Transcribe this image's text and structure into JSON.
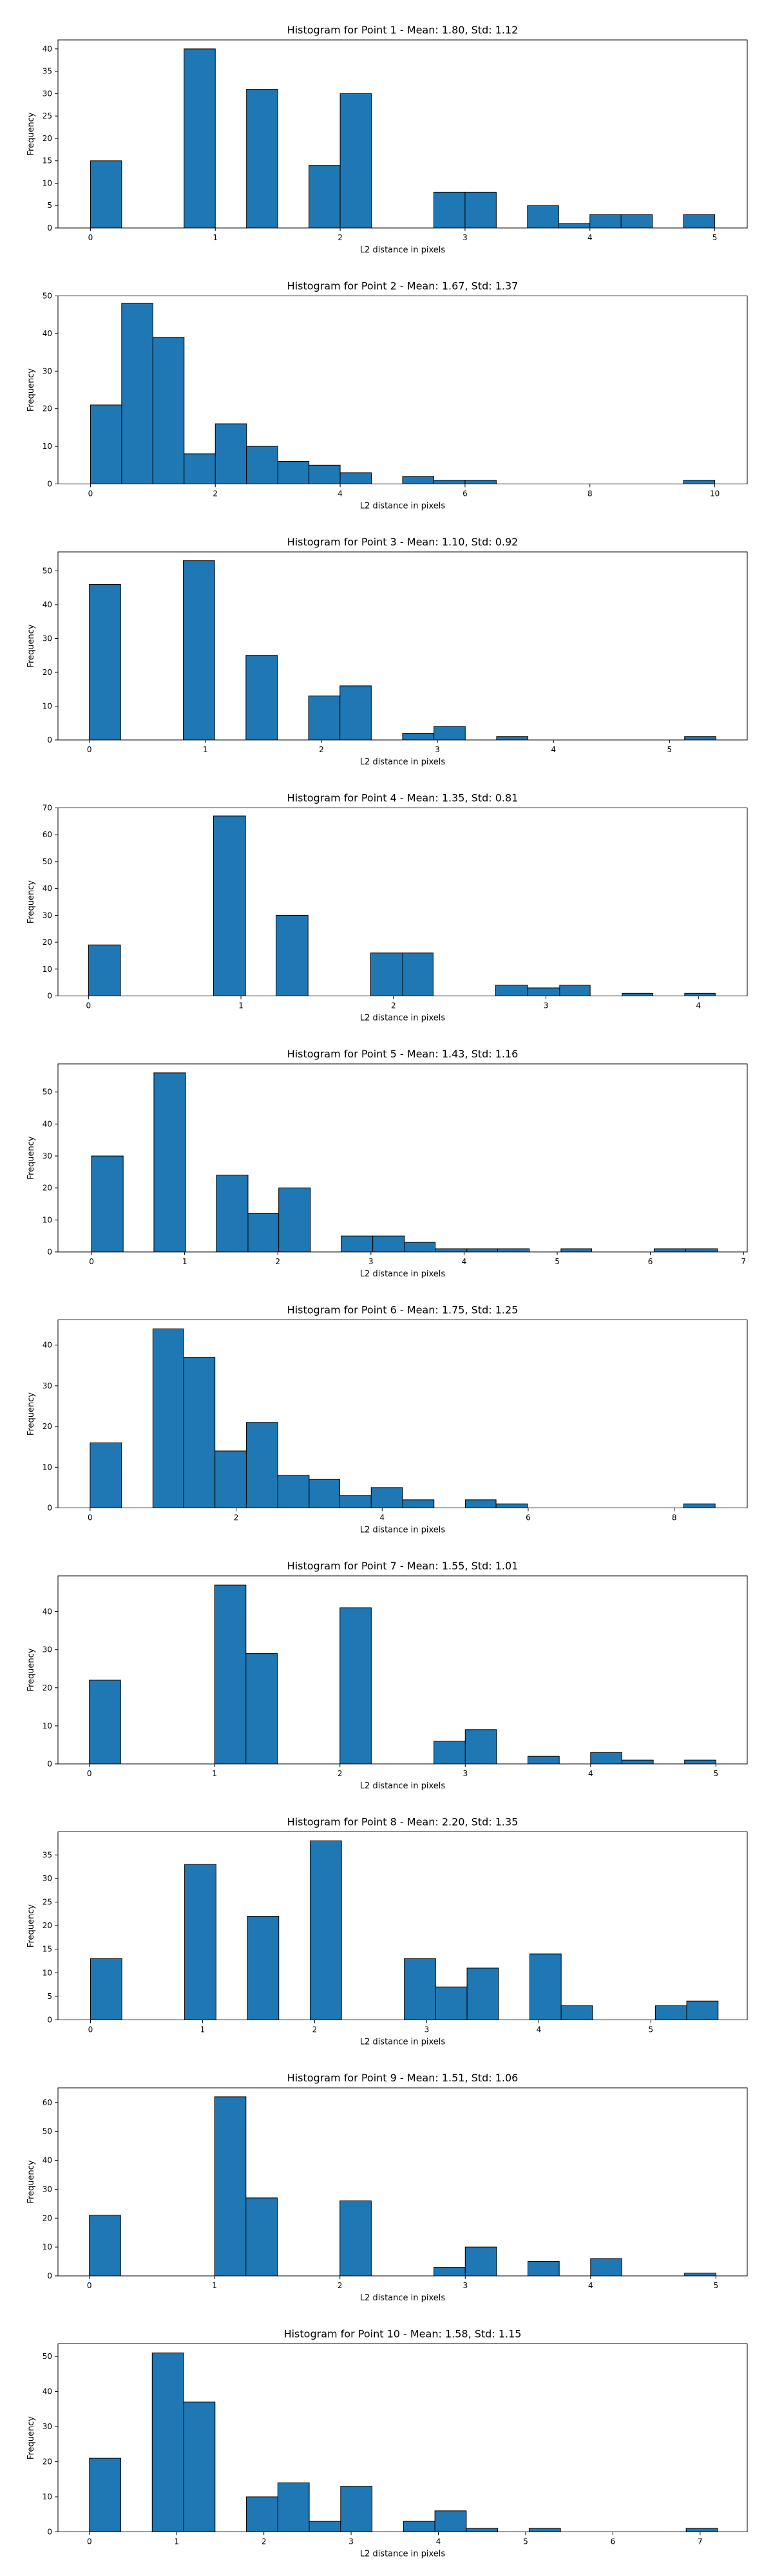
{
  "colors": {
    "bar_fill": "#1f77b4",
    "bar_edge": "#000000",
    "axes": "#000000",
    "background": "#ffffff"
  },
  "chart_data": [
    {
      "type": "bar",
      "title": "Histogram for Point 1 - Mean: 1.80, Std: 1.12",
      "xlabel": "L2 distance in pixels",
      "ylabel": "Frequency",
      "xlim": [
        -0.26,
        5.26
      ],
      "ylim": [
        0,
        42
      ],
      "xticks": [
        "0",
        "1",
        "2",
        "3",
        "4",
        "5"
      ],
      "yticks": [
        "0",
        "5",
        "10",
        "15",
        "20",
        "25",
        "30",
        "35",
        "40"
      ],
      "bins": [
        {
          "x0": 0.0,
          "x1": 0.25,
          "count": 15
        },
        {
          "x0": 0.75,
          "x1": 1.0,
          "count": 40
        },
        {
          "x0": 1.25,
          "x1": 1.5,
          "count": 31
        },
        {
          "x0": 1.75,
          "x1": 2.0,
          "count": 14
        },
        {
          "x0": 2.0,
          "x1": 2.25,
          "count": 30
        },
        {
          "x0": 2.75,
          "x1": 3.0,
          "count": 8
        },
        {
          "x0": 3.0,
          "x1": 3.25,
          "count": 8
        },
        {
          "x0": 3.5,
          "x1": 3.75,
          "count": 5
        },
        {
          "x0": 3.75,
          "x1": 4.0,
          "count": 1
        },
        {
          "x0": 4.0,
          "x1": 4.25,
          "count": 3
        },
        {
          "x0": 4.25,
          "x1": 4.5,
          "count": 3
        },
        {
          "x0": 4.75,
          "x1": 5.0,
          "count": 3
        }
      ]
    },
    {
      "type": "bar",
      "title": "Histogram for Point 2 - Mean: 1.67, Std: 1.37",
      "xlabel": "L2 distance in pixels",
      "ylabel": "Frequency",
      "xlim": [
        -0.52,
        10.52
      ],
      "ylim": [
        0,
        50
      ],
      "xticks": [
        "0",
        "2",
        "4",
        "6",
        "8",
        "10"
      ],
      "yticks": [
        "0",
        "10",
        "20",
        "30",
        "40",
        "50"
      ],
      "bins": [
        {
          "x0": 0.0,
          "x1": 0.5,
          "count": 21
        },
        {
          "x0": 0.5,
          "x1": 1.0,
          "count": 48
        },
        {
          "x0": 1.0,
          "x1": 1.5,
          "count": 39
        },
        {
          "x0": 1.5,
          "x1": 2.0,
          "count": 8
        },
        {
          "x0": 2.0,
          "x1": 2.5,
          "count": 16
        },
        {
          "x0": 2.5,
          "x1": 3.0,
          "count": 10
        },
        {
          "x0": 3.0,
          "x1": 3.5,
          "count": 6
        },
        {
          "x0": 3.5,
          "x1": 4.0,
          "count": 5
        },
        {
          "x0": 4.0,
          "x1": 4.5,
          "count": 3
        },
        {
          "x0": 5.0,
          "x1": 5.5,
          "count": 2
        },
        {
          "x0": 5.5,
          "x1": 6.0,
          "count": 1
        },
        {
          "x0": 6.0,
          "x1": 6.5,
          "count": 1
        },
        {
          "x0": 9.5,
          "x1": 10.0,
          "count": 1
        }
      ]
    },
    {
      "type": "bar",
      "title": "Histogram for Point 3 - Mean: 1.10, Std: 0.92",
      "xlabel": "L2 distance in pixels",
      "ylabel": "Frequency",
      "xlim": [
        -0.27,
        5.67
      ],
      "ylim": [
        0,
        55.6
      ],
      "xticks": [
        "0",
        "1",
        "2",
        "3",
        "4",
        "5"
      ],
      "yticks": [
        "0",
        "10",
        "20",
        "30",
        "40",
        "50"
      ],
      "bins": [
        {
          "x0": 0.0,
          "x1": 0.27,
          "count": 46
        },
        {
          "x0": 0.81,
          "x1": 1.08,
          "count": 53
        },
        {
          "x0": 1.35,
          "x1": 1.62,
          "count": 25
        },
        {
          "x0": 1.89,
          "x1": 2.16,
          "count": 13
        },
        {
          "x0": 2.16,
          "x1": 2.43,
          "count": 16
        },
        {
          "x0": 2.7,
          "x1": 2.97,
          "count": 2
        },
        {
          "x0": 2.97,
          "x1": 3.24,
          "count": 4
        },
        {
          "x0": 3.51,
          "x1": 3.78,
          "count": 1
        },
        {
          "x0": 5.13,
          "x1": 5.4,
          "count": 1
        }
      ]
    },
    {
      "type": "bar",
      "title": "Histogram for Point 4 - Mean: 1.35, Std: 0.81",
      "xlabel": "L2 distance in pixels",
      "ylabel": "Frequency",
      "xlim": [
        -0.2,
        4.32
      ],
      "ylim": [
        0,
        70
      ],
      "xticks": [
        "0",
        "1",
        "2",
        "3",
        "4"
      ],
      "yticks": [
        "0",
        "10",
        "20",
        "30",
        "40",
        "50",
        "60",
        "70"
      ],
      "bins": [
        {
          "x0": 0.0,
          "x1": 0.21,
          "count": 19
        },
        {
          "x0": 0.82,
          "x1": 1.03,
          "count": 67
        },
        {
          "x0": 1.23,
          "x1": 1.44,
          "count": 30
        },
        {
          "x0": 1.85,
          "x1": 2.06,
          "count": 16
        },
        {
          "x0": 2.06,
          "x1": 2.26,
          "count": 16
        },
        {
          "x0": 2.67,
          "x1": 2.88,
          "count": 4
        },
        {
          "x0": 2.88,
          "x1": 3.09,
          "count": 3
        },
        {
          "x0": 3.09,
          "x1": 3.29,
          "count": 4
        },
        {
          "x0": 3.5,
          "x1": 3.7,
          "count": 1
        },
        {
          "x0": 3.91,
          "x1": 4.11,
          "count": 1
        }
      ]
    },
    {
      "type": "bar",
      "title": "Histogram for Point 5 - Mean: 1.43, Std: 1.16",
      "xlabel": "L2 distance in pixels",
      "ylabel": "Frequency",
      "xlim": [
        -0.36,
        7.04
      ],
      "ylim": [
        0,
        58.8
      ],
      "xticks": [
        "0",
        "1",
        "2",
        "3",
        "4",
        "5",
        "6",
        "7"
      ],
      "yticks": [
        "0",
        "10",
        "20",
        "30",
        "40",
        "50"
      ],
      "bins": [
        {
          "x0": 0.0,
          "x1": 0.34,
          "count": 30
        },
        {
          "x0": 0.67,
          "x1": 1.01,
          "count": 56
        },
        {
          "x0": 1.34,
          "x1": 1.68,
          "count": 24
        },
        {
          "x0": 1.68,
          "x1": 2.01,
          "count": 12
        },
        {
          "x0": 2.01,
          "x1": 2.35,
          "count": 20
        },
        {
          "x0": 2.68,
          "x1": 3.02,
          "count": 5
        },
        {
          "x0": 3.02,
          "x1": 3.36,
          "count": 5
        },
        {
          "x0": 3.36,
          "x1": 3.69,
          "count": 3
        },
        {
          "x0": 3.69,
          "x1": 4.03,
          "count": 1
        },
        {
          "x0": 4.03,
          "x1": 4.36,
          "count": 1
        },
        {
          "x0": 4.36,
          "x1": 4.7,
          "count": 1
        },
        {
          "x0": 5.04,
          "x1": 5.37,
          "count": 1
        },
        {
          "x0": 6.04,
          "x1": 6.38,
          "count": 1
        },
        {
          "x0": 6.38,
          "x1": 6.72,
          "count": 1
        }
      ]
    },
    {
      "type": "bar",
      "title": "Histogram for Point 6 - Mean: 1.75, Std: 1.25",
      "xlabel": "L2 distance in pixels",
      "ylabel": "Frequency",
      "xlim": [
        -0.44,
        9.0
      ],
      "ylim": [
        0,
        46.2
      ],
      "xticks": [
        "0",
        "2",
        "4",
        "6",
        "8"
      ],
      "yticks": [
        "0",
        "10",
        "20",
        "30",
        "40"
      ],
      "bins": [
        {
          "x0": 0.0,
          "x1": 0.43,
          "count": 16
        },
        {
          "x0": 0.86,
          "x1": 1.28,
          "count": 44
        },
        {
          "x0": 1.28,
          "x1": 1.71,
          "count": 37
        },
        {
          "x0": 1.71,
          "x1": 2.14,
          "count": 14
        },
        {
          "x0": 2.14,
          "x1": 2.57,
          "count": 21
        },
        {
          "x0": 2.57,
          "x1": 3.0,
          "count": 8
        },
        {
          "x0": 3.0,
          "x1": 3.42,
          "count": 7
        },
        {
          "x0": 3.42,
          "x1": 3.85,
          "count": 3
        },
        {
          "x0": 3.85,
          "x1": 4.28,
          "count": 5
        },
        {
          "x0": 4.28,
          "x1": 4.71,
          "count": 2
        },
        {
          "x0": 5.14,
          "x1": 5.56,
          "count": 2
        },
        {
          "x0": 5.56,
          "x1": 5.99,
          "count": 1
        },
        {
          "x0": 8.13,
          "x1": 8.56,
          "count": 1
        }
      ]
    },
    {
      "type": "bar",
      "title": "Histogram for Point 7 - Mean: 1.55, Std: 1.01",
      "xlabel": "L2 distance in pixels",
      "ylabel": "Frequency",
      "xlim": [
        -0.25,
        5.25
      ],
      "ylim": [
        0,
        49.4
      ],
      "xticks": [
        "0",
        "1",
        "2",
        "3",
        "4",
        "5"
      ],
      "yticks": [
        "0",
        "10",
        "20",
        "30",
        "40"
      ],
      "bins": [
        {
          "x0": 0.0,
          "x1": 0.25,
          "count": 22
        },
        {
          "x0": 1.0,
          "x1": 1.25,
          "count": 47
        },
        {
          "x0": 1.25,
          "x1": 1.5,
          "count": 29
        },
        {
          "x0": 2.0,
          "x1": 2.25,
          "count": 41
        },
        {
          "x0": 2.75,
          "x1": 3.0,
          "count": 6
        },
        {
          "x0": 3.0,
          "x1": 3.25,
          "count": 9
        },
        {
          "x0": 3.5,
          "x1": 3.75,
          "count": 2
        },
        {
          "x0": 4.0,
          "x1": 4.25,
          "count": 3
        },
        {
          "x0": 4.25,
          "x1": 4.5,
          "count": 1
        },
        {
          "x0": 4.75,
          "x1": 5.0,
          "count": 1
        }
      ]
    },
    {
      "type": "bar",
      "title": "Histogram for Point 8 - Mean: 2.20, Std: 1.35",
      "xlabel": "L2 distance in pixels",
      "ylabel": "Frequency",
      "xlim": [
        -0.29,
        5.86
      ],
      "ylim": [
        0,
        39.9
      ],
      "xticks": [
        "0",
        "1",
        "2",
        "3",
        "4",
        "5"
      ],
      "yticks": [
        "0",
        "5",
        "10",
        "15",
        "20",
        "25",
        "30",
        "35"
      ],
      "bins": [
        {
          "x0": 0.0,
          "x1": 0.28,
          "count": 13
        },
        {
          "x0": 0.84,
          "x1": 1.12,
          "count": 33
        },
        {
          "x0": 1.4,
          "x1": 1.68,
          "count": 22
        },
        {
          "x0": 1.96,
          "x1": 2.24,
          "count": 38
        },
        {
          "x0": 2.8,
          "x1": 3.08,
          "count": 13
        },
        {
          "x0": 3.08,
          "x1": 3.36,
          "count": 7
        },
        {
          "x0": 3.36,
          "x1": 3.64,
          "count": 11
        },
        {
          "x0": 3.92,
          "x1": 4.2,
          "count": 14
        },
        {
          "x0": 4.2,
          "x1": 4.48,
          "count": 3
        },
        {
          "x0": 5.04,
          "x1": 5.32,
          "count": 3
        },
        {
          "x0": 5.32,
          "x1": 5.6,
          "count": 4
        }
      ]
    },
    {
      "type": "bar",
      "title": "Histogram for Point 9 - Mean: 1.51, Std: 1.06",
      "xlabel": "L2 distance in pixels",
      "ylabel": "Frequency",
      "xlim": [
        -0.25,
        5.25
      ],
      "ylim": [
        0,
        65.1
      ],
      "xticks": [
        "0",
        "1",
        "2",
        "3",
        "4",
        "5"
      ],
      "yticks": [
        "0",
        "10",
        "20",
        "30",
        "40",
        "50",
        "60"
      ],
      "bins": [
        {
          "x0": 0.0,
          "x1": 0.25,
          "count": 21
        },
        {
          "x0": 1.0,
          "x1": 1.25,
          "count": 62
        },
        {
          "x0": 1.25,
          "x1": 1.5,
          "count": 27
        },
        {
          "x0": 2.0,
          "x1": 2.25,
          "count": 26
        },
        {
          "x0": 2.75,
          "x1": 3.0,
          "count": 3
        },
        {
          "x0": 3.0,
          "x1": 3.25,
          "count": 10
        },
        {
          "x0": 3.5,
          "x1": 3.75,
          "count": 5
        },
        {
          "x0": 4.0,
          "x1": 4.25,
          "count": 6
        },
        {
          "x0": 4.75,
          "x1": 5.0,
          "count": 1
        }
      ]
    },
    {
      "type": "bar",
      "title": "Histogram for Point 10 - Mean: 1.58, Std: 1.15",
      "xlabel": "L2 distance in pixels",
      "ylabel": "Frequency",
      "xlim": [
        -0.36,
        7.54
      ],
      "ylim": [
        0,
        53.6
      ],
      "xticks": [
        "0",
        "1",
        "2",
        "3",
        "4",
        "5",
        "6",
        "7"
      ],
      "yticks": [
        "0",
        "10",
        "20",
        "30",
        "40",
        "50"
      ],
      "bins": [
        {
          "x0": 0.0,
          "x1": 0.36,
          "count": 21
        },
        {
          "x0": 0.72,
          "x1": 1.08,
          "count": 51
        },
        {
          "x0": 1.08,
          "x1": 1.44,
          "count": 37
        },
        {
          "x0": 1.8,
          "x1": 2.16,
          "count": 10
        },
        {
          "x0": 2.16,
          "x1": 2.52,
          "count": 14
        },
        {
          "x0": 2.52,
          "x1": 2.88,
          "count": 3
        },
        {
          "x0": 2.88,
          "x1": 3.24,
          "count": 13
        },
        {
          "x0": 3.6,
          "x1": 3.96,
          "count": 3
        },
        {
          "x0": 3.96,
          "x1": 4.32,
          "count": 6
        },
        {
          "x0": 4.32,
          "x1": 4.68,
          "count": 1
        },
        {
          "x0": 5.04,
          "x1": 5.4,
          "count": 1
        },
        {
          "x0": 6.84,
          "x1": 7.2,
          "count": 1
        }
      ]
    }
  ]
}
